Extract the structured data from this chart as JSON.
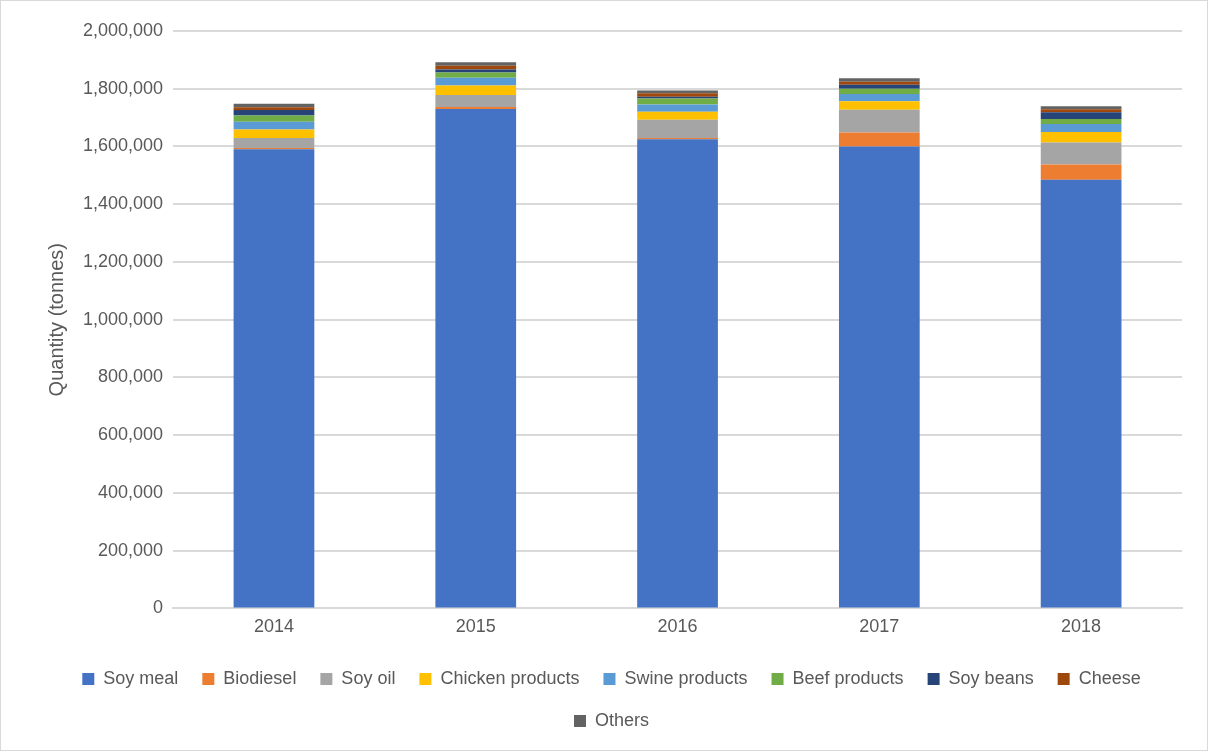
{
  "chart_data": {
    "type": "bar",
    "stacked": true,
    "ylabel": "Quantity (tonnes)",
    "categories": [
      "2014",
      "2015",
      "2016",
      "2017",
      "2018"
    ],
    "series": [
      {
        "name": "Soy meal",
        "color": "#4472c4",
        "values": [
          1590000,
          1730000,
          1625000,
          1600000,
          1485000
        ]
      },
      {
        "name": "Biodiesel",
        "color": "#ed7d31",
        "values": [
          5000,
          7000,
          4000,
          48000,
          53000
        ]
      },
      {
        "name": "Soy oil",
        "color": "#a5a5a5",
        "values": [
          34000,
          41000,
          64000,
          79000,
          76000
        ]
      },
      {
        "name": "Chicken products",
        "color": "#ffc000",
        "values": [
          30000,
          33000,
          27000,
          30000,
          36000
        ]
      },
      {
        "name": "Swine products",
        "color": "#5b9bd5",
        "values": [
          27000,
          27000,
          25000,
          25000,
          28000
        ]
      },
      {
        "name": "Beef products",
        "color": "#70ad47",
        "values": [
          21000,
          18000,
          21000,
          18000,
          17000
        ]
      },
      {
        "name": "Soy beans",
        "color": "#264478",
        "values": [
          19000,
          11000,
          6000,
          14000,
          24000
        ]
      },
      {
        "name": "Cheese",
        "color": "#9e480e",
        "values": [
          10000,
          13000,
          12000,
          10000,
          10000
        ]
      },
      {
        "name": "Others",
        "color": "#636363",
        "values": [
          12000,
          12000,
          10000,
          12000,
          10000
        ]
      }
    ],
    "ylim": [
      0,
      2000000
    ],
    "yticks": [
      0,
      {
        "value": 200000,
        "label": "200,000"
      },
      {
        "value": 400000,
        "label": "400,000"
      },
      {
        "value": 600000,
        "label": "600,000"
      },
      {
        "value": 800000,
        "label": "800,000"
      },
      {
        "value": 1000000,
        "label": "1,000,000"
      },
      {
        "value": 1200000,
        "label": "1,200,000"
      },
      {
        "value": 1400000,
        "label": "1,400,000"
      },
      {
        "value": 1600000,
        "label": "1,600,000"
      },
      {
        "value": 1800000,
        "label": "1,800,000"
      },
      {
        "value": 2000000,
        "label": "2,000,000"
      }
    ],
    "grid": "y",
    "legend": "bottom"
  }
}
